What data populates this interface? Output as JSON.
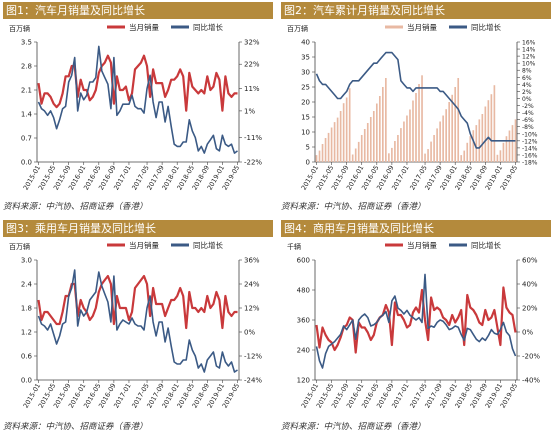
{
  "panels": [
    {
      "title": "图1：汽车月销量及同比增长",
      "source": "资料来源：中汽协、招商证券（香港）",
      "chart_data": {
        "type": "bar+line",
        "title": "汽车月销量及同比增长",
        "left_unit": "百万辆",
        "y_left": {
          "min": 0,
          "max": 3.5,
          "ticks": [
            "0.0",
            "0.7",
            "1.4",
            "2.1",
            "2.8",
            "3.5"
          ]
        },
        "y_right": {
          "min": -22,
          "max": 32,
          "ticks": [
            "-22%",
            "-11%",
            "1%",
            "11%",
            "22%",
            "32%"
          ]
        },
        "x_ticks": [
          "2015-01",
          "2015-05",
          "2015-09",
          "2016-01",
          "2016-05",
          "2016-09",
          "2017-01",
          "2017-05",
          "2017-09",
          "2018-01",
          "2018-05",
          "2018-09",
          "2019-01",
          "2019-05"
        ],
        "series": [
          {
            "name": "当月销量",
            "axis": "left",
            "color": "#c9393b",
            "values": [
              2.3,
              1.7,
              2.0,
              2.0,
              1.9,
              1.7,
              1.6,
              1.7,
              2.0,
              2.5,
              2.5,
              2.8,
              2.8,
              1.9,
              2.4,
              2.1,
              2.1,
              1.8,
              1.9,
              2.1,
              2.6,
              2.8,
              2.9,
              3.1,
              2.9,
              1.7,
              2.5,
              2.1,
              2.1,
              2.2,
              1.8,
              2.0,
              2.7,
              2.8,
              2.9,
              3.1,
              2.8,
              1.9,
              2.7,
              2.3,
              2.3,
              2.3,
              1.9,
              2.1,
              2.4,
              2.4,
              2.5,
              2.7,
              2.5,
              1.5,
              2.6,
              2.2,
              2.1,
              2.0,
              2.1,
              2.0,
              2.5,
              2.1,
              2.2,
              2.6,
              2.4,
              1.5,
              2.5,
              2.0,
              1.9,
              2.0,
              2.0
            ]
          },
          {
            "name": "同比增长",
            "axis": "right",
            "color": "#3b5a85",
            "values": [
              5,
              2,
              1,
              -1,
              1,
              -2,
              -7,
              -3,
              2,
              3,
              14,
              17,
              25,
              1,
              9,
              6,
              8,
              14,
              14,
              16,
              30,
              19,
              16,
              13,
              2,
              25,
              -1,
              1,
              4,
              4,
              4,
              8,
              3,
              2,
              2,
              0,
              11,
              17,
              5,
              -2,
              5,
              5,
              -4,
              3,
              -6,
              -14,
              -15,
              -15,
              -13,
              -13,
              -3,
              -8,
              -11,
              -17,
              -15,
              -18,
              -14,
              -12,
              -10,
              -16,
              -17,
              -10,
              -14,
              -15,
              -14,
              -18,
              -17
            ]
          }
        ],
        "legend": [
          "当月销量",
          "同比增长"
        ]
      }
    },
    {
      "title": "图2：汽车累计月销量及同比增长",
      "source": "资料来源：中汽协、招商证券（香港）",
      "chart_data": {
        "type": "bar+line",
        "title": "汽车累计月销量及同比增长",
        "left_unit": "百万辆",
        "y_left": {
          "min": 0,
          "max": 40,
          "ticks": [
            "0",
            "5",
            "10",
            "15",
            "20",
            "25",
            "30",
            "35",
            "40"
          ]
        },
        "y_right": {
          "min": -18,
          "max": 16,
          "ticks": [
            "-18%",
            "-16%",
            "-14%",
            "-12%",
            "-10%",
            "-8%",
            "-6%",
            "-4%",
            "-2%",
            "0%",
            "2%",
            "4%",
            "6%",
            "8%",
            "10%",
            "12%",
            "14%",
            "16%"
          ]
        },
        "x_ticks": [
          "2015-01",
          "2015-05",
          "2015-09",
          "2016-01",
          "2016-05",
          "2016-09",
          "2017-01",
          "2017-05",
          "2017-09",
          "2018-01",
          "2018-05",
          "2018-09",
          "2019-01",
          "2019-05"
        ],
        "series": [
          {
            "name": "当月销量",
            "axis": "left",
            "color": "#e8b9a3",
            "values": [
              2.3,
              3.8,
              6.0,
              8.0,
              9.7,
              11.5,
              13.3,
              14.8,
              17.0,
              19.6,
              21.5,
              24.6,
              2.5,
              4.5,
              6.7,
              9.0,
              11.0,
              13.0,
              15.0,
              17.0,
              19.5,
              22.0,
              25.0,
              28.0,
              2.9,
              4.7,
              7.0,
              9.0,
              11.3,
              13.5,
              15.5,
              17.5,
              20.5,
              23.0,
              26.0,
              28.9,
              2.8,
              4.3,
              6.8,
              9.0,
              11.2,
              13.5,
              15.5,
              17.6,
              20.0,
              22.4,
              25.0,
              28.0,
              2.3,
              3.8,
              6.4,
              8.6,
              10.6,
              12.3,
              14.2,
              16.0,
              18.5,
              20.6,
              22.6,
              25.6,
              2.4,
              3.9,
              6.4,
              8.6,
              10.5,
              12.3,
              14.2
            ]
          },
          {
            "name": "同比增长",
            "axis": "right",
            "color": "#3b5a85",
            "values": [
              7,
              5,
              4,
              4,
              3,
              2,
              1,
              0,
              0,
              1,
              2,
              4,
              5,
              5,
              5,
              6,
              7,
              8,
              9,
              10,
              10,
              11,
              12,
              13,
              13,
              13,
              12,
              11,
              5,
              4,
              3,
              3,
              2,
              3,
              3,
              3,
              3,
              3,
              3,
              3,
              3,
              2,
              2,
              1,
              0,
              -1,
              -2,
              -3,
              -5,
              -6,
              -7,
              -10,
              -12,
              -14,
              -14,
              -13,
              -12,
              -11,
              -12,
              -12,
              -12,
              -12,
              -12,
              -12,
              -12,
              -12,
              -12
            ]
          }
        ],
        "legend": [
          "当月销量",
          "同比增长"
        ]
      }
    },
    {
      "title": "图3：乘用车月销量及同比增长",
      "source": "资料来源：中汽协、招商证券（香港）",
      "chart_data": {
        "type": "bar+line",
        "title": "乘用车月销量及同比增长",
        "left_unit": "百万辆",
        "y_left": {
          "min": 0,
          "max": 3.0,
          "ticks": [
            "0.0",
            "0.6",
            "1.2",
            "1.8",
            "2.4",
            "3.0"
          ]
        },
        "y_right": {
          "min": -24,
          "max": 36,
          "ticks": [
            "-24%",
            "-12%",
            "0%",
            "12%",
            "24%",
            "36%"
          ]
        },
        "x_ticks": [
          "2015-01",
          "2015-05",
          "2015-09",
          "2016-01",
          "2016-05",
          "2016-09",
          "2017-01",
          "2017-05",
          "2017-09",
          "2018-01",
          "2018-05",
          "2018-09",
          "2019-01",
          "2019-05"
        ],
        "series": [
          {
            "name": "当月销量",
            "axis": "left",
            "color": "#c9393b",
            "values": [
              2.0,
              1.5,
              1.7,
              1.7,
              1.6,
              1.5,
              1.4,
              1.4,
              1.7,
              2.1,
              2.1,
              2.4,
              2.4,
              1.6,
              2.0,
              1.8,
              1.7,
              1.5,
              1.6,
              1.8,
              2.2,
              2.4,
              2.5,
              2.6,
              2.4,
              1.4,
              2.1,
              1.8,
              1.8,
              1.8,
              1.5,
              1.7,
              2.3,
              2.4,
              2.5,
              2.6,
              2.4,
              1.6,
              2.3,
              1.9,
              1.9,
              1.9,
              1.6,
              1.8,
              2.0,
              2.0,
              2.1,
              2.3,
              2.1,
              1.3,
              2.2,
              1.8,
              1.8,
              1.7,
              1.8,
              1.7,
              2.1,
              1.8,
              1.9,
              2.2,
              2.0,
              1.3,
              2.1,
              1.7,
              1.6,
              1.7,
              1.7
            ]
          },
          {
            "name": "同比增长",
            "axis": "right",
            "color": "#3b5a85",
            "values": [
              8,
              4,
              3,
              1,
              4,
              -1,
              -6,
              -2,
              4,
              5,
              18,
              22,
              31,
              3,
              11,
              8,
              10,
              16,
              18,
              20,
              30,
              23,
              19,
              15,
              5,
              28,
              1,
              4,
              6,
              5,
              4,
              7,
              4,
              3,
              3,
              1,
              12,
              18,
              5,
              -2,
              5,
              5,
              -5,
              2,
              -7,
              -15,
              -16,
              -16,
              -14,
              -14,
              -4,
              -9,
              -12,
              -18,
              -16,
              -20,
              -14,
              -12,
              -10,
              -17,
              -18,
              -10,
              -15,
              -17,
              -15,
              -20,
              -19
            ]
          }
        ],
        "legend": [
          "当月销量",
          "同比增长"
        ]
      }
    },
    {
      "title": "图4：商用车月销量及同比增长",
      "source": "资料来源：中汽协、招商证券（香港）",
      "chart_data": {
        "type": "bar+line",
        "title": "商用车月销量及同比增长",
        "left_unit": "千辆",
        "y_left": {
          "min": 120,
          "max": 600,
          "ticks": [
            "120",
            "240",
            "360",
            "480",
            "600"
          ]
        },
        "y_right": {
          "min": -40,
          "max": 60,
          "ticks": [
            "-40%",
            "-20%",
            "0%",
            "20%",
            "40%",
            "60%"
          ]
        },
        "x_ticks": [
          "2015-01",
          "2015-05",
          "2015-09",
          "2016-01",
          "2016-05",
          "2016-09",
          "2017-01",
          "2017-05",
          "2017-09",
          "2018-01",
          "2018-05",
          "2018-09",
          "2019-01",
          "2019-05"
        ],
        "series": [
          {
            "name": "当月销量",
            "axis": "left",
            "color": "#c9393b",
            "values": [
              340,
              250,
              330,
              300,
              280,
              270,
              240,
              260,
              290,
              330,
              340,
              370,
              360,
              230,
              350,
              330,
              330,
              310,
              280,
              300,
              350,
              370,
              380,
              420,
              390,
              260,
              430,
              380,
              380,
              360,
              330,
              340,
              390,
              410,
              390,
              480,
              360,
              280,
              450,
              400,
              410,
              400,
              370,
              360,
              340,
              380,
              350,
              370,
              400,
              260,
              460,
              410,
              400,
              380,
              350,
              340,
              400,
              360,
              370,
              400,
              330,
              260,
              490,
              410,
              390,
              380,
              310
            ]
          },
          {
            "name": "同比增长",
            "axis": "right",
            "color": "#3b5a85",
            "values": [
              -12,
              -24,
              -30,
              -18,
              -12,
              -10,
              -8,
              -5,
              -2,
              5,
              2,
              6,
              10,
              -6,
              10,
              13,
              15,
              12,
              5,
              6,
              8,
              12,
              14,
              17,
              8,
              26,
              30,
              20,
              18,
              15,
              18,
              14,
              12,
              10,
              12,
              8,
              48,
              3,
              5,
              4,
              8,
              10,
              9,
              6,
              2,
              3,
              5,
              4,
              -2,
              -7,
              3,
              2,
              -2,
              -6,
              -8,
              -5,
              -7,
              -3,
              2,
              -1,
              -2,
              2,
              8,
              0,
              -3,
              -14,
              -20
            ]
          }
        ],
        "legend": [
          "当月销量",
          "同比增长"
        ]
      }
    }
  ]
}
